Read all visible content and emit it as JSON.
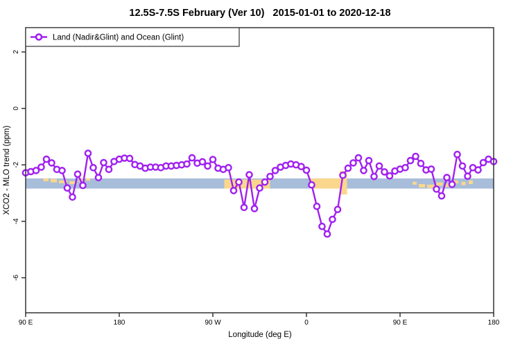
{
  "title": "12.5S-7.5S February (Ver 10)   2015-01-01 to 2020-12-18",
  "legend": {
    "label": "Land (Nadir&Glint) and Ocean (Glint)",
    "marker": "open-circle-on-line"
  },
  "colors": {
    "line": "#A020F0",
    "marker_fill": "#FFFFFF",
    "ocean_band": "#A8BDDA",
    "land_band": "#FAD78C",
    "axis": "#333333",
    "background": "#FFFFFF",
    "text": "#000000"
  },
  "chart_data": {
    "type": "line",
    "title": "12.5S-7.5S February (Ver 10)   2015-01-01 to 2020-12-18",
    "xlabel": "Longitude (deg E)",
    "ylabel": "XCO2 - MLO trend (ppm)",
    "xlim": [
      90,
      540
    ],
    "ylim": [
      -7.24,
      2.86
    ],
    "grid": false,
    "legend_position": "top-left-inside",
    "x_ticks": [
      {
        "value": 90,
        "label": "90 E"
      },
      {
        "value": 180,
        "label": "180"
      },
      {
        "value": 270,
        "label": "90 W"
      },
      {
        "value": 360,
        "label": "0"
      },
      {
        "value": 450,
        "label": "90 E"
      },
      {
        "value": 540,
        "label": "180"
      }
    ],
    "y_ticks": [
      {
        "value": 2,
        "label": "2"
      },
      {
        "value": 0,
        "label": "0"
      },
      {
        "value": -2,
        "label": "-2"
      },
      {
        "value": -4,
        "label": "-4"
      },
      {
        "value": -6,
        "label": "-6"
      }
    ],
    "ocean_band": {
      "y_top": -2.48,
      "y_bottom": -2.84,
      "meaning": "ocean reference band"
    },
    "land_segments": [
      {
        "from": 107,
        "to": 112,
        "top": -2.48,
        "bottom": -2.58
      },
      {
        "from": 114,
        "to": 120,
        "top": -2.5,
        "bottom": -2.62
      },
      {
        "from": 122,
        "to": 130,
        "top": -2.55,
        "bottom": -2.65
      },
      {
        "from": 132,
        "to": 139,
        "top": -2.58,
        "bottom": -2.68
      },
      {
        "from": 141,
        "to": 146,
        "top": -2.5,
        "bottom": -2.6
      },
      {
        "from": 148,
        "to": 152,
        "top": -2.48,
        "bottom": -2.56
      },
      {
        "from": 281,
        "to": 325,
        "top": -2.52,
        "bottom": -2.84
      },
      {
        "from": 363,
        "to": 392,
        "top": -2.48,
        "bottom": -2.84
      },
      {
        "from": 392,
        "to": 399,
        "top": -2.22,
        "bottom": -3.05
      },
      {
        "from": 462,
        "to": 466,
        "top": -2.6,
        "bottom": -2.7
      },
      {
        "from": 468,
        "to": 474,
        "top": -2.68,
        "bottom": -2.8
      },
      {
        "from": 476,
        "to": 483,
        "top": -2.7,
        "bottom": -2.82
      },
      {
        "from": 485,
        "to": 491,
        "top": -2.62,
        "bottom": -2.74
      },
      {
        "from": 493,
        "to": 499,
        "top": -2.66,
        "bottom": -2.78
      },
      {
        "from": 502,
        "to": 506,
        "top": -2.55,
        "bottom": -2.66
      },
      {
        "from": 509,
        "to": 513,
        "top": -2.6,
        "bottom": -2.72
      },
      {
        "from": 516,
        "to": 520,
        "top": -2.55,
        "bottom": -2.68
      }
    ],
    "series": [
      {
        "name": "Land (Nadir&Glint) and Ocean (Glint)",
        "x": [
          90,
          95,
          100,
          105,
          110,
          115,
          120,
          125,
          130,
          135,
          140,
          145,
          150,
          155,
          160,
          165,
          170,
          175,
          180,
          185,
          190,
          195,
          200,
          205,
          210,
          215,
          220,
          225,
          230,
          235,
          240,
          245,
          250,
          255,
          260,
          265,
          270,
          275,
          280,
          285,
          290,
          295,
          300,
          305,
          310,
          315,
          320,
          325,
          330,
          335,
          340,
          345,
          350,
          355,
          360,
          365,
          370,
          375,
          380,
          385,
          390,
          395,
          400,
          405,
          410,
          415,
          420,
          425,
          430,
          435,
          440,
          445,
          450,
          455,
          460,
          465,
          470,
          475,
          480,
          485,
          490,
          495,
          500,
          505,
          510,
          515,
          520,
          525,
          530,
          535,
          540
        ],
        "y": [
          -2.28,
          -2.24,
          -2.2,
          -2.08,
          -1.8,
          -1.93,
          -2.16,
          -2.2,
          -2.82,
          -3.14,
          -2.33,
          -2.73,
          -1.59,
          -2.1,
          -2.45,
          -1.92,
          -2.16,
          -1.88,
          -1.8,
          -1.76,
          -1.77,
          -1.99,
          -2.04,
          -2.12,
          -2.08,
          -2.08,
          -2.1,
          -2.04,
          -2.04,
          -2.02,
          -2.0,
          -1.97,
          -1.75,
          -1.94,
          -1.89,
          -2.04,
          -1.81,
          -2.12,
          -2.16,
          -2.1,
          -2.91,
          -2.61,
          -3.51,
          -2.35,
          -3.55,
          -2.82,
          -2.61,
          -2.41,
          -2.2,
          -2.08,
          -2.02,
          -1.97,
          -2.0,
          -2.06,
          -2.19,
          -2.71,
          -3.47,
          -4.18,
          -4.45,
          -3.93,
          -3.58,
          -2.37,
          -2.12,
          -1.93,
          -1.75,
          -2.2,
          -1.85,
          -2.41,
          -2.04,
          -2.25,
          -2.39,
          -2.22,
          -2.15,
          -2.1,
          -1.85,
          -1.7,
          -1.95,
          -2.18,
          -2.15,
          -2.86,
          -3.1,
          -2.45,
          -2.69,
          -1.63,
          -2.04,
          -2.4,
          -2.1,
          -2.18,
          -1.92,
          -1.8,
          -1.88
        ]
      }
    ]
  }
}
